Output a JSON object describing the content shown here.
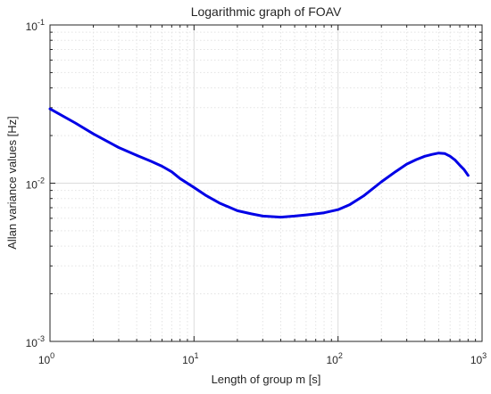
{
  "chart_data": {
    "type": "line",
    "title": "Logarithmic graph of FOAV",
    "xlabel": "Length of group m [s]",
    "ylabel": "Allan variance values [Hz]",
    "xscale": "log",
    "yscale": "log",
    "xlim": [
      1,
      1000
    ],
    "ylim": [
      0.001,
      0.1
    ],
    "grid": true,
    "minor_grid": true,
    "x_ticks": [
      {
        "base": "10",
        "exp": "0",
        "value": 1
      },
      {
        "base": "10",
        "exp": "1",
        "value": 10
      },
      {
        "base": "10",
        "exp": "2",
        "value": 100
      },
      {
        "base": "10",
        "exp": "3",
        "value": 1000
      }
    ],
    "y_ticks": [
      {
        "base": "10",
        "exp": "-3",
        "value": 0.001
      },
      {
        "base": "10",
        "exp": "-2",
        "value": 0.01
      },
      {
        "base": "10",
        "exp": "-1",
        "value": 0.1
      }
    ],
    "series": [
      {
        "color": "#0000e6",
        "x": [
          1,
          1.5,
          2,
          3,
          4,
          5,
          6,
          7,
          8,
          10,
          12,
          15,
          20,
          25,
          30,
          40,
          50,
          60,
          70,
          80,
          100,
          120,
          150,
          200,
          250,
          300,
          350,
          400,
          450,
          500,
          550,
          600,
          650,
          700,
          750,
          800
        ],
        "y": [
          0.0295,
          0.024,
          0.0205,
          0.0168,
          0.015,
          0.0138,
          0.0128,
          0.0118,
          0.0107,
          0.0094,
          0.0084,
          0.0075,
          0.0067,
          0.0064,
          0.0062,
          0.0061,
          0.0062,
          0.0063,
          0.0064,
          0.0065,
          0.0068,
          0.0073,
          0.0083,
          0.0102,
          0.0118,
          0.0132,
          0.0141,
          0.0148,
          0.0152,
          0.0155,
          0.0154,
          0.0148,
          0.014,
          0.013,
          0.0122,
          0.0112
        ]
      }
    ]
  }
}
